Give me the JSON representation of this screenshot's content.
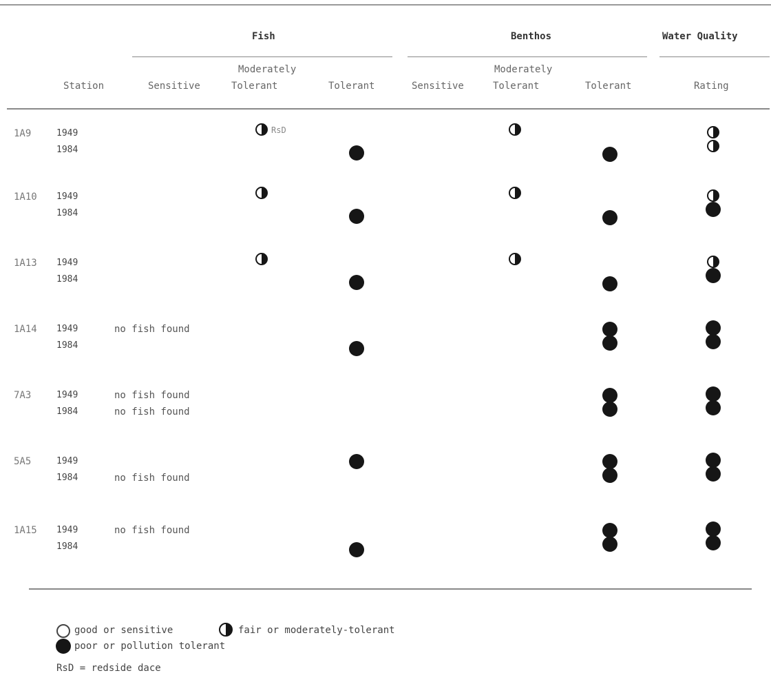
{
  "header": {
    "groups": {
      "fish": "Fish",
      "benthos": "Benthos",
      "water_quality": "Water Quality"
    },
    "columns": {
      "station": "Station",
      "fish_sensitive": "Sensitive",
      "fish_mod_line1": "Moderately",
      "fish_mod_line2": "Tolerant",
      "fish_tolerant": "Tolerant",
      "benthos_sensitive": "Sensitive",
      "benthos_mod_line1": "Moderately",
      "benthos_mod_line2": "Tolerant",
      "benthos_tolerant": "Tolerant",
      "rating": "Rating"
    }
  },
  "rows": [
    {
      "station": "1A9",
      "y1949": "1949",
      "y1984": "1984",
      "fish_1949": "moderately-tolerant",
      "fish_1949_note": "RsD",
      "fish_1984": "tolerant",
      "benthos_1949": "moderately-tolerant",
      "benthos_1984": "tolerant",
      "rating_1949": "fair",
      "rating_1984": "fair"
    },
    {
      "station": "1A10",
      "y1949": "1949",
      "y1984": "1984",
      "fish_1949": "moderately-tolerant",
      "fish_1984": "tolerant",
      "benthos_1949": "moderately-tolerant",
      "benthos_1984": "tolerant",
      "rating_1949": "fair",
      "rating_1984": "poor"
    },
    {
      "station": "1A13",
      "y1949": "1949",
      "y1984": "1984",
      "fish_1949": "moderately-tolerant",
      "fish_1984": "tolerant",
      "benthos_1949": "moderately-tolerant",
      "benthos_1984": "tolerant",
      "rating_1949": "fair",
      "rating_1984": "poor"
    },
    {
      "station": "1A14",
      "y1949": "1949",
      "y1984": "1984",
      "note_1949": "no fish found",
      "fish_1984": "tolerant",
      "benthos_1949": "tolerant",
      "benthos_1984": "tolerant",
      "rating_1949": "poor",
      "rating_1984": "poor"
    },
    {
      "station": "7A3",
      "y1949": "1949",
      "y1984": "1984",
      "note_1949": "no fish found",
      "note_1984": "no fish found",
      "benthos_1949": "tolerant",
      "benthos_1984": "tolerant",
      "rating_1949": "poor",
      "rating_1984": "poor"
    },
    {
      "station": "5A5",
      "y1949": "1949",
      "y1984": "1984",
      "fish_1949": "tolerant",
      "note_1984": "no fish found",
      "benthos_1949": "tolerant",
      "benthos_1984": "tolerant",
      "rating_1949": "poor",
      "rating_1984": "poor"
    },
    {
      "station": "1A15",
      "y1949": "1949",
      "y1984": "1984",
      "note_1949": "no fish found",
      "fish_1984": "tolerant",
      "benthos_1949": "tolerant",
      "benthos_1984": "tolerant",
      "rating_1949": "poor",
      "rating_1984": "poor"
    }
  ],
  "legend": {
    "good": "good or sensitive",
    "fair": "fair or moderately-tolerant",
    "poor": "poor or pollution tolerant",
    "abbrev": "RsD = redside dace"
  }
}
